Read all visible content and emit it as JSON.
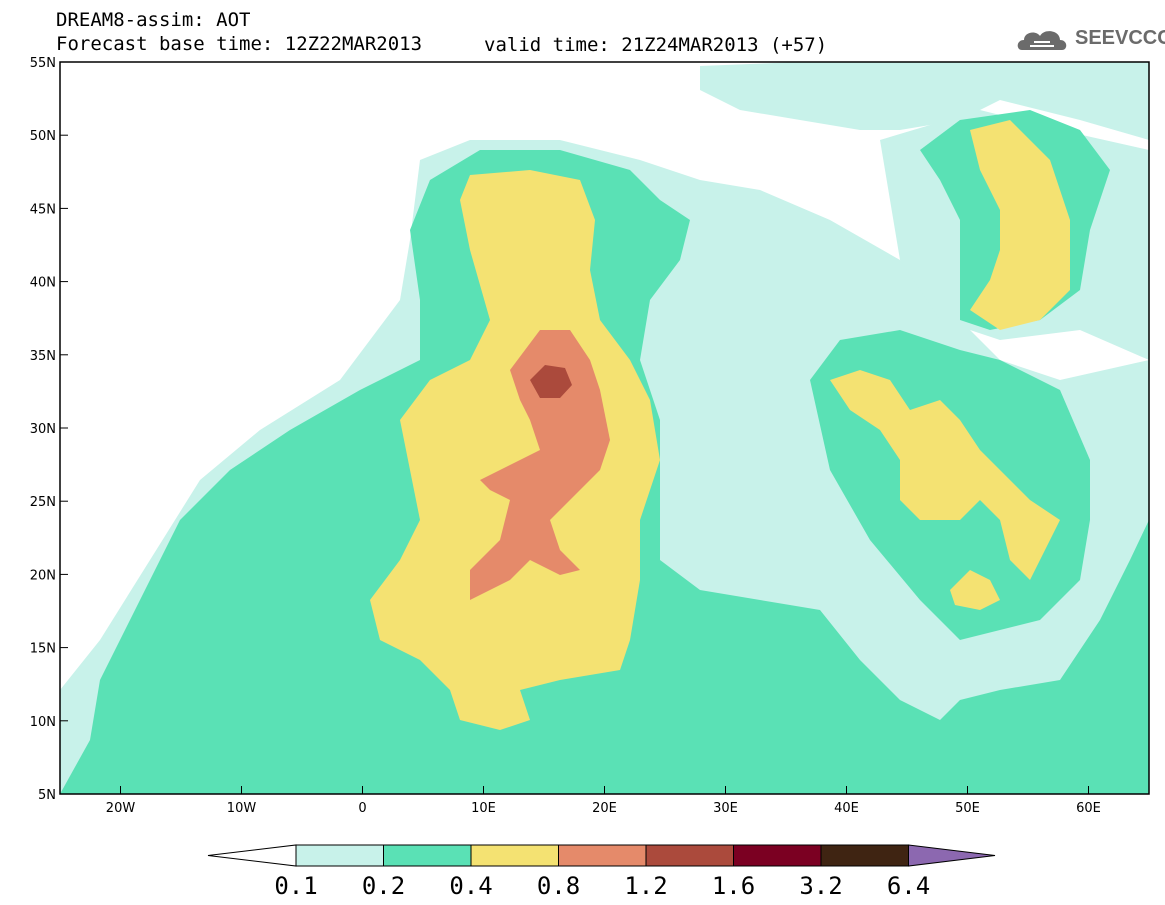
{
  "header": {
    "title": "DREAM8-assim: AOT",
    "base_time": "Forecast base time: 12Z22MAR2013",
    "valid_time": "valid time: 21Z24MAR2013 (+57)"
  },
  "logo": {
    "text": "SEEVCCC",
    "icon": "cloud-logo-icon",
    "color": "#6b6b6b"
  },
  "map": {
    "lon_range": [
      -25,
      65
    ],
    "lat_range": [
      5,
      55
    ],
    "lon_ticks": [
      "20W",
      "10W",
      "0",
      "10E",
      "20E",
      "30E",
      "40E",
      "50E",
      "60E"
    ],
    "lat_ticks": [
      "55N",
      "50N",
      "45N",
      "40N",
      "35N",
      "30N",
      "25N",
      "20N",
      "15N",
      "10N",
      "5N"
    ],
    "variable": "AOT"
  },
  "colorbar": {
    "labels": [
      "0.1",
      "0.2",
      "0.4",
      "0.8",
      "1.2",
      "1.6",
      "3.2",
      "6.4"
    ],
    "colors": [
      "#ffffff",
      "#c8f2ea",
      "#5ae1b5",
      "#f4e272",
      "#e58a6a",
      "#ab4a3c",
      "#7b0022",
      "#3f2412",
      "#8c68b0"
    ]
  },
  "colors": {
    "lightcyan": "#c8f2ea",
    "green": "#5ae1b5",
    "yellow": "#f4e272",
    "orange": "#e58a6a",
    "red": "#ab4a3c"
  }
}
